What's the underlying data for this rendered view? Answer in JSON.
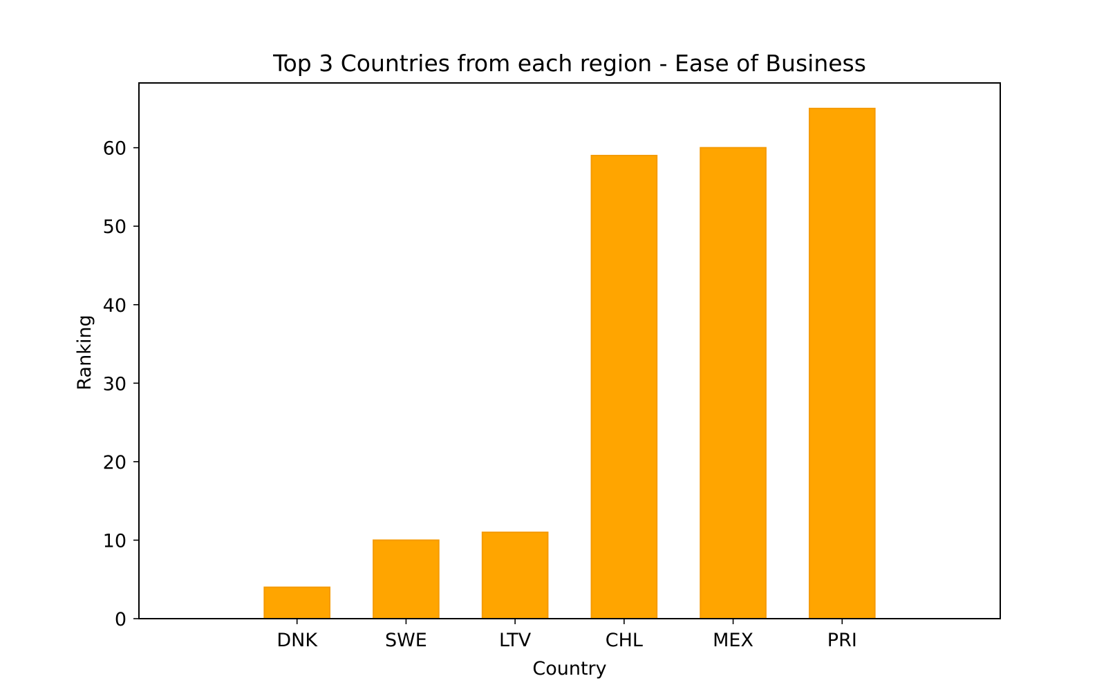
{
  "chart_data": {
    "type": "bar",
    "title": "Top 3 Countries from each region - Ease of Business",
    "xlabel": "Country",
    "ylabel": "Ranking",
    "categories": [
      "DNK",
      "SWE",
      "LTV",
      "CHL",
      "MEX",
      "PRI"
    ],
    "values": [
      4,
      10,
      11,
      59,
      60,
      65
    ],
    "ylim": [
      0,
      68.25
    ],
    "yticks": [
      0,
      10,
      20,
      30,
      40,
      50,
      60
    ],
    "grid": false,
    "legend": "none",
    "colors": {
      "bar_fill": "#ffa500",
      "bar_edge": "#f59a00",
      "axes": "#000000"
    }
  }
}
